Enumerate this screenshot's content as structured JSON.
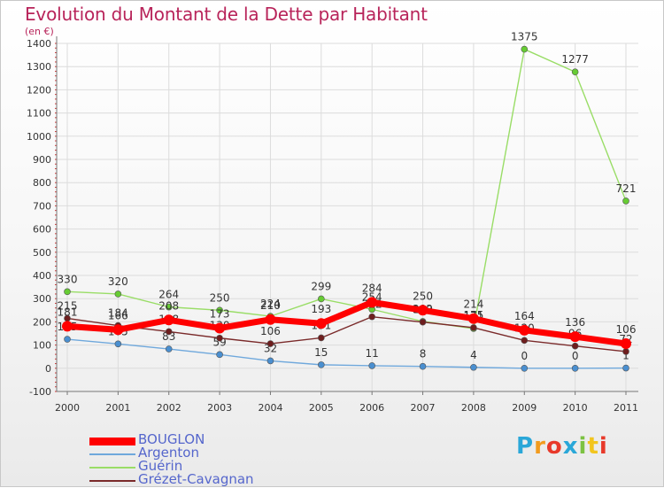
{
  "title": "Evolution du Montant de la Dette par Habitant",
  "subtitle": "(en €)",
  "logo": {
    "text": "Proxiti",
    "colors": [
      "#2aa7d8",
      "#f29b1e",
      "#e8392a",
      "#2aa7d8",
      "#7cc242",
      "#f2c51e",
      "#e8392a"
    ]
  },
  "chart_data": {
    "type": "line",
    "title": "Evolution du Montant de la Dette par Habitant",
    "subtitle": "(en €)",
    "x": [
      "2000",
      "2001",
      "2002",
      "2003",
      "2004",
      "2005",
      "2006",
      "2007",
      "2008",
      "2009",
      "2010",
      "2011"
    ],
    "ylim": [
      -100,
      1400
    ],
    "yticks": [
      -100,
      0,
      100,
      200,
      300,
      400,
      500,
      600,
      700,
      800,
      900,
      1000,
      1100,
      1200,
      1300,
      1400
    ],
    "ytick_labels": [
      "-100",
      "0",
      "100",
      "200",
      "300",
      "400",
      "500",
      "600",
      "700",
      "800",
      "900",
      "1000",
      "1100",
      "1200",
      "1300",
      "1400"
    ],
    "grid": true,
    "legend_position": "bottom-left",
    "series": [
      {
        "name": "Guérin",
        "color": "#99dd66",
        "line_color": "#99dd66",
        "marker_color": "#66cc33",
        "line_width": 1.4,
        "values": [
          330,
          320,
          264,
          250,
          224,
          299,
          254,
          202,
          171,
          1375,
          1277,
          721
        ],
        "labels": [
          "330",
          "320",
          "264",
          "250",
          "224",
          "299",
          "254",
          "202",
          "171",
          "1375",
          "1277",
          "721"
        ],
        "label_offset": -10
      },
      {
        "name": "Argenton",
        "color": "#5b9bd5",
        "line_color": "#6fa8dc",
        "marker_color": "#4a8fd0",
        "line_width": 1.4,
        "values": [
          125,
          105,
          83,
          59,
          32,
          15,
          11,
          8,
          4,
          0,
          0,
          1
        ],
        "labels": [
          "125",
          "105",
          "83",
          "59",
          "32",
          "15",
          "11",
          "8",
          "4",
          "0",
          "0",
          "1"
        ],
        "label_offset": -10
      },
      {
        "name": "Grézet-Cavagnan",
        "color": "#7a2a2a",
        "line_color": "#7a2a2a",
        "marker_color": "#6e1e1e",
        "line_width": 1.4,
        "values": [
          215,
          184,
          158,
          130,
          106,
          131,
          222,
          199,
          175,
          120,
          96,
          72
        ],
        "labels": [
          "215",
          "184",
          "158",
          "130",
          "106",
          "131",
          "222",
          "199",
          "175",
          "120",
          "96",
          "72"
        ],
        "label_offset": -10
      },
      {
        "name": "BOUGLON",
        "color": "#ff0000",
        "line_color": "#ff0000",
        "marker_color": "#ff0000",
        "line_width": 7,
        "values": [
          181,
          166,
          208,
          173,
          210,
          193,
          284,
          250,
          214,
          164,
          136,
          106
        ],
        "labels": [
          "181",
          "166",
          "208",
          "173",
          "210",
          "193",
          "284",
          "250",
          "214",
          "164",
          "136",
          "106"
        ],
        "label_offset": -12
      }
    ],
    "legend": [
      {
        "name": "BOUGLON",
        "color": "#ff0000",
        "thickness": 9
      },
      {
        "name": "Argenton",
        "color": "#6fa8dc",
        "thickness": 2
      },
      {
        "name": "Guérin",
        "color": "#99dd66",
        "thickness": 2
      },
      {
        "name": "Grézet-Cavagnan",
        "color": "#7a2a2a",
        "thickness": 2
      }
    ]
  }
}
